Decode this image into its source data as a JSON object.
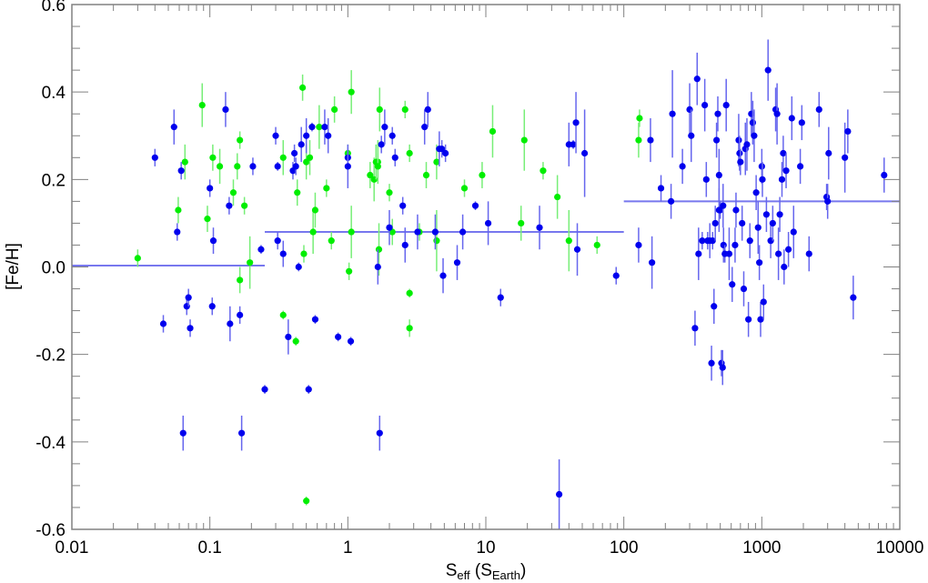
{
  "chart_data": {
    "type": "scatter",
    "title": "",
    "xlabel": "S_eff (S_Earth)",
    "xlabel_parts": {
      "main": "S",
      "sub": "eff",
      "paren_main": "S",
      "paren_sub": "Earth"
    },
    "ylabel": "[Fe/H]",
    "xscale": "log",
    "xlim": [
      0.01,
      10000
    ],
    "ylim": [
      -0.6,
      0.6
    ],
    "x_ticks": [
      0.01,
      0.1,
      1,
      10,
      100,
      1000,
      10000
    ],
    "x_tick_labels": [
      "0.01",
      "0.1",
      "1",
      "10",
      "100",
      "1000",
      "10000"
    ],
    "y_ticks": [
      -0.6,
      -0.4,
      -0.2,
      0.0,
      0.2,
      0.4,
      0.6
    ],
    "y_tick_labels": [
      "-0.6",
      "-0.4",
      "-0.2",
      "0.0",
      "0.2",
      "0.4",
      "0.6"
    ],
    "grid": false,
    "legend": null,
    "colors": {
      "blue_series": "#0000ee",
      "green_series": "#00ee00",
      "blue_err": "#6666ee",
      "green_err": "#77ee77",
      "mean_line": "#7777ee",
      "axis": "#808080"
    },
    "mean_lines": [
      {
        "x_range": [
          0.01,
          0.25
        ],
        "value": 0.003
      },
      {
        "x_range": [
          0.25,
          100
        ],
        "value": 0.08
      },
      {
        "x_range": [
          100,
          10000
        ],
        "value": 0.15
      }
    ],
    "series": [
      {
        "name": "blue",
        "color": "#0000ee",
        "points": [
          [
            0.04,
            0.25,
            0.02
          ],
          [
            0.046,
            -0.13,
            0.02
          ],
          [
            0.055,
            0.32,
            0.04
          ],
          [
            0.058,
            0.08,
            0.02
          ],
          [
            0.062,
            0.22,
            0.02
          ],
          [
            0.064,
            -0.38,
            0.04
          ],
          [
            0.068,
            -0.09,
            0.02
          ],
          [
            0.07,
            -0.07,
            0.02
          ],
          [
            0.072,
            -0.14,
            0.02
          ],
          [
            0.1,
            0.18,
            0.02
          ],
          [
            0.104,
            -0.09,
            0.02
          ],
          [
            0.106,
            0.06,
            0.03
          ],
          [
            0.13,
            0.36,
            0.04
          ],
          [
            0.138,
            0.14,
            0.02
          ],
          [
            0.14,
            -0.13,
            0.04
          ],
          [
            0.165,
            -0.11,
            0.02
          ],
          [
            0.17,
            -0.38,
            0.04
          ],
          [
            0.205,
            0.23,
            0.02
          ],
          [
            0.235,
            0.04,
            0.01
          ],
          [
            0.25,
            -0.28,
            0.01
          ],
          [
            0.3,
            0.3,
            0.02
          ],
          [
            0.31,
            0.06,
            0.02
          ],
          [
            0.31,
            0.23,
            0.01
          ],
          [
            0.34,
            0.03,
            0.03
          ],
          [
            0.37,
            -0.16,
            0.04
          ],
          [
            0.4,
            0.22,
            0.02
          ],
          [
            0.41,
            0.26,
            0.02
          ],
          [
            0.42,
            0.23,
            0.02
          ],
          [
            0.44,
            0.0,
            0.01
          ],
          [
            0.46,
            0.28,
            0.04
          ],
          [
            0.5,
            0.3,
            0.04
          ],
          [
            0.52,
            -0.28,
            0.01
          ],
          [
            0.55,
            0.32,
            0.01
          ],
          [
            0.58,
            -0.12,
            0.01
          ],
          [
            0.68,
            0.32,
            0.04
          ],
          [
            0.72,
            0.3,
            0.04
          ],
          [
            0.85,
            -0.16,
            0.01
          ],
          [
            1.0,
            0.25,
            0.02
          ],
          [
            1.0,
            0.23,
            0.05
          ],
          [
            1.05,
            -0.17,
            0.01
          ],
          [
            1.65,
            0.0,
            0.04
          ],
          [
            1.7,
            -0.38,
            0.04
          ],
          [
            1.75,
            0.28,
            0.02
          ],
          [
            1.85,
            0.32,
            0.04
          ],
          [
            2.0,
            0.09,
            0.04
          ],
          [
            2.1,
            0.3,
            0.02
          ],
          [
            2.2,
            0.25,
            0.02
          ],
          [
            2.5,
            0.14,
            0.02
          ],
          [
            2.6,
            0.05,
            0.04
          ],
          [
            3.2,
            0.08,
            0.04
          ],
          [
            3.6,
            0.32,
            0.04
          ],
          [
            3.8,
            0.36,
            0.04
          ],
          [
            4.3,
            0.08,
            0.04
          ],
          [
            4.6,
            0.27,
            0.04
          ],
          [
            4.8,
            0.27,
            0.02
          ],
          [
            4.9,
            -0.02,
            0.04
          ],
          [
            5.1,
            0.26,
            0.02
          ],
          [
            6.2,
            0.01,
            0.04
          ],
          [
            6.8,
            0.08,
            0.04
          ],
          [
            8.4,
            0.14,
            0.01
          ],
          [
            10.4,
            0.1,
            0.05
          ],
          [
            12.8,
            -0.07,
            0.02
          ],
          [
            24.5,
            0.09,
            0.05
          ],
          [
            34,
            -0.52,
            0.08
          ],
          [
            40,
            0.28,
            0.05
          ],
          [
            43,
            0.28,
            0.01
          ],
          [
            45,
            0.33,
            0.07
          ],
          [
            46,
            0.04,
            0.06
          ],
          [
            52,
            0.26,
            0.1
          ],
          [
            88,
            -0.02,
            0.02
          ],
          [
            128,
            0.05,
            0.04
          ],
          [
            156,
            0.29,
            0.05
          ],
          [
            160,
            0.01,
            0.06
          ],
          [
            186,
            0.18,
            0.03
          ],
          [
            220,
            0.15,
            0.04
          ],
          [
            225,
            0.35,
            0.1
          ],
          [
            266,
            0.23,
            0.04
          ],
          [
            300,
            0.36,
            0.06
          ],
          [
            308,
            0.3,
            0.06
          ],
          [
            328,
            -0.14,
            0.04
          ],
          [
            340,
            0.43,
            0.06
          ],
          [
            348,
            0.03,
            0.06
          ],
          [
            370,
            0.06,
            0.02
          ],
          [
            386,
            0.37,
            0.06
          ],
          [
            396,
            0.2,
            0.04
          ],
          [
            405,
            0.06,
            0.02
          ],
          [
            420,
            0.06,
            0.04
          ],
          [
            432,
            -0.22,
            0.04
          ],
          [
            440,
            0.06,
            0.02
          ],
          [
            450,
            -0.09,
            0.04
          ],
          [
            460,
            0.1,
            0.04
          ],
          [
            470,
            0.29,
            0.04
          ],
          [
            480,
            0.35,
            0.04
          ],
          [
            490,
            0.21,
            0.06
          ],
          [
            490,
            0.13,
            0.05
          ],
          [
            500,
            0.13,
            0.02
          ],
          [
            510,
            -0.22,
            0.03
          ],
          [
            520,
            -0.23,
            0.04
          ],
          [
            524,
            0.14,
            0.05
          ],
          [
            528,
            0.05,
            0.04
          ],
          [
            540,
            0.03,
            0.02
          ],
          [
            552,
            0.37,
            0.06
          ],
          [
            580,
            0.03,
            0.06
          ],
          [
            610,
            -0.04,
            0.04
          ],
          [
            640,
            0.05,
            0.04
          ],
          [
            650,
            0.13,
            0.04
          ],
          [
            680,
            0.29,
            0.06
          ],
          [
            690,
            0.26,
            0.04
          ],
          [
            700,
            0.24,
            0.03
          ],
          [
            720,
            0.1,
            0.04
          ],
          [
            740,
            -0.05,
            0.04
          ],
          [
            760,
            0.27,
            0.06
          ],
          [
            780,
            0.28,
            0.06
          ],
          [
            800,
            -0.12,
            0.04
          ],
          [
            820,
            0.06,
            0.04
          ],
          [
            840,
            0.35,
            0.05
          ],
          [
            860,
            0.33,
            0.05
          ],
          [
            880,
            0.3,
            0.06
          ],
          [
            910,
            0.17,
            0.04
          ],
          [
            940,
            0.09,
            0.06
          ],
          [
            960,
            0.01,
            0.04
          ],
          [
            980,
            -0.12,
            0.04
          ],
          [
            1000,
            0.23,
            0.04
          ],
          [
            1010,
            0.2,
            0.04
          ],
          [
            1030,
            -0.08,
            0.04
          ],
          [
            1080,
            0.12,
            0.04
          ],
          [
            1110,
            0.45,
            0.07
          ],
          [
            1160,
            0.06,
            0.04
          ],
          [
            1200,
            0.1,
            0.04
          ],
          [
            1260,
            0.36,
            0.05
          ],
          [
            1290,
            0.35,
            0.07
          ],
          [
            1320,
            0.03,
            0.06
          ],
          [
            1350,
            0.12,
            0.04
          ],
          [
            1400,
            0.2,
            0.04
          ],
          [
            1430,
            0.26,
            0.04
          ],
          [
            1450,
            0.0,
            0.04
          ],
          [
            1500,
            0.22,
            0.04
          ],
          [
            1560,
            0.04,
            0.04
          ],
          [
            1650,
            0.34,
            0.05
          ],
          [
            1700,
            0.08,
            0.06
          ],
          [
            1900,
            0.23,
            0.04
          ],
          [
            1950,
            0.33,
            0.04
          ],
          [
            2200,
            0.03,
            0.04
          ],
          [
            2600,
            0.36,
            0.04
          ],
          [
            2950,
            0.16,
            0.03
          ],
          [
            3000,
            0.15,
            0.04
          ],
          [
            3050,
            0.26,
            0.06
          ],
          [
            4000,
            0.25,
            0.08
          ],
          [
            4200,
            0.31,
            0.05
          ],
          [
            4600,
            -0.07,
            0.05
          ],
          [
            7700,
            0.21,
            0.04
          ]
        ]
      },
      {
        "name": "green",
        "color": "#00ee00",
        "points": [
          [
            0.03,
            0.02,
            0.02
          ],
          [
            0.059,
            0.13,
            0.03
          ],
          [
            0.066,
            0.24,
            0.04
          ],
          [
            0.088,
            0.37,
            0.05
          ],
          [
            0.096,
            0.11,
            0.03
          ],
          [
            0.105,
            0.25,
            0.03
          ],
          [
            0.118,
            0.23,
            0.04
          ],
          [
            0.148,
            0.17,
            0.03
          ],
          [
            0.158,
            0.23,
            0.03
          ],
          [
            0.165,
            0.29,
            0.02
          ],
          [
            0.165,
            -0.03,
            0.03
          ],
          [
            0.178,
            0.14,
            0.02
          ],
          [
            0.195,
            0.01,
            0.06
          ],
          [
            0.34,
            -0.11,
            0.01
          ],
          [
            0.34,
            0.25,
            0.04
          ],
          [
            0.42,
            -0.17,
            0.01
          ],
          [
            0.43,
            0.17,
            0.03
          ],
          [
            0.47,
            0.41,
            0.03
          ],
          [
            0.48,
            0.03,
            0.02
          ],
          [
            0.5,
            0.24,
            0.04
          ],
          [
            0.53,
            0.25,
            0.04
          ],
          [
            0.5,
            -0.535,
            0.01
          ],
          [
            0.56,
            0.08,
            0.05
          ],
          [
            0.58,
            0.13,
            0.04
          ],
          [
            0.62,
            0.32,
            0.05
          ],
          [
            0.7,
            0.18,
            0.02
          ],
          [
            0.76,
            0.06,
            0.02
          ],
          [
            0.8,
            0.36,
            0.03
          ],
          [
            1.0,
            0.26,
            0.02
          ],
          [
            1.06,
            0.4,
            0.05
          ],
          [
            1.06,
            0.08,
            0.06
          ],
          [
            1.02,
            -0.01,
            0.02
          ],
          [
            1.45,
            0.21,
            0.03
          ],
          [
            1.55,
            0.2,
            0.05
          ],
          [
            1.6,
            0.24,
            0.04
          ],
          [
            1.65,
            0.24,
            0.05
          ],
          [
            1.7,
            0.36,
            0.05
          ],
          [
            1.68,
            0.04,
            0.06
          ],
          [
            1.65,
            0.23,
            0.03
          ],
          [
            2.0,
            0.17,
            0.02
          ],
          [
            2.1,
            0.08,
            0.03
          ],
          [
            2.6,
            0.36,
            0.02
          ],
          [
            2.8,
            0.26,
            0.02
          ],
          [
            2.8,
            -0.06,
            0.01
          ],
          [
            2.8,
            -0.14,
            0.02
          ],
          [
            3.3,
            0.08,
            0.02
          ],
          [
            3.7,
            0.21,
            0.03
          ],
          [
            4.4,
            0.24,
            0.04
          ],
          [
            4.4,
            0.06,
            0.07
          ],
          [
            7.0,
            0.18,
            0.02
          ],
          [
            9.4,
            0.21,
            0.03
          ],
          [
            11.2,
            0.31,
            0.06
          ],
          [
            18,
            0.1,
            0.04
          ],
          [
            19,
            0.29,
            0.07
          ],
          [
            26,
            0.22,
            0.02
          ],
          [
            33,
            0.16,
            0.05
          ],
          [
            40,
            0.06,
            0.07
          ],
          [
            64,
            0.05,
            0.02
          ],
          [
            128,
            0.29,
            0.04
          ],
          [
            130,
            0.34,
            0.02
          ]
        ]
      }
    ]
  }
}
